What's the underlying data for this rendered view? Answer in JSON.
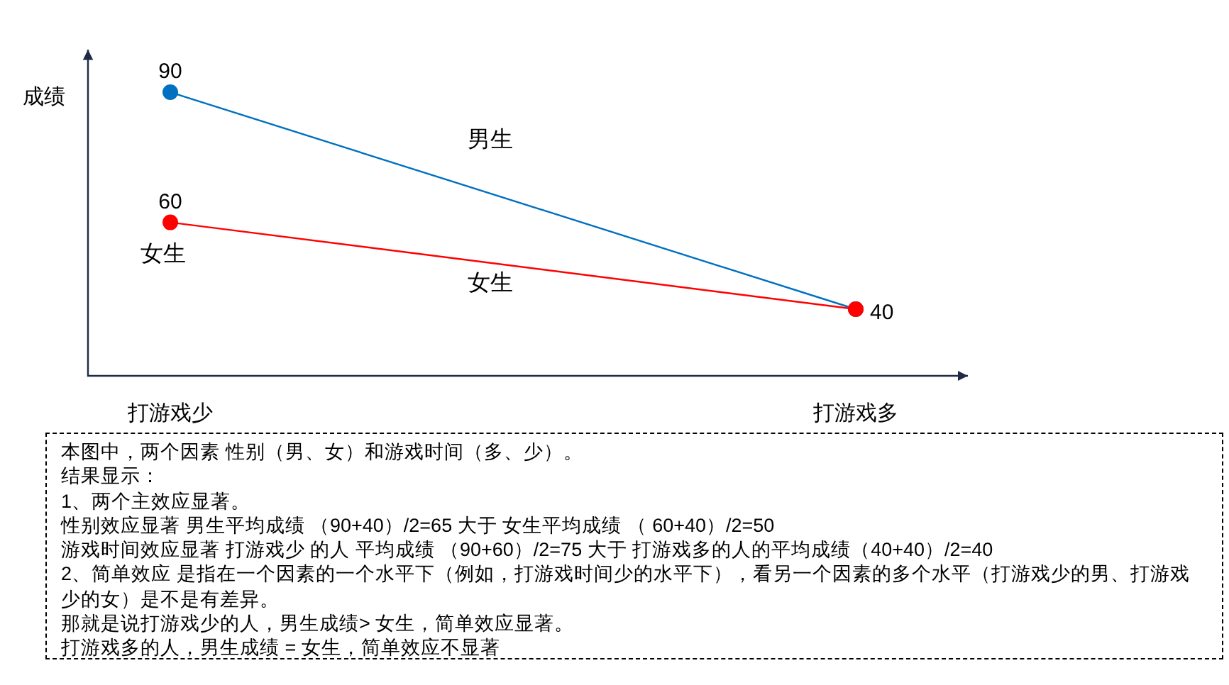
{
  "chart_data": {
    "type": "line",
    "ylabel": "成绩",
    "categories": [
      "打游戏少",
      "打游戏多"
    ],
    "series": [
      {
        "name": "男生",
        "color": "#0070c0",
        "values": [
          90,
          40
        ],
        "value_labels": [
          "90",
          "40"
        ]
      },
      {
        "name": "女生",
        "color": "#ff0000",
        "values": [
          60,
          40
        ],
        "value_labels": [
          "60",
          null
        ]
      }
    ],
    "marker": "circle",
    "line_style": "solid",
    "annotations": [
      {
        "text": "女生",
        "x": "打游戏少",
        "y": 60
      },
      "本图中，两个因素 性别（男、女）和游戏时间（多、少）。",
      "结果显示：",
      "1、两个主效应显著。",
      "性别效应显著   男生平均成绩 （90+40）/2=65  大于  女生平均成绩 （ 60+40）/2=50",
      "游戏时间效应显著   打游戏少 的人  平均成绩 （90+60）/2=75  大于 打游戏多的人的平均成绩（40+40）/2=40",
      "2、简单效应  是指在一个因素的一个水平下（例如，打游戏时间少的水平下），看另一个因素的多个水平（打游戏少的男、打游戏少的女）是不是有差异。",
      "那就是说打游戏少的人，男生成绩> 女生，简单效应显著。",
      "打游戏多的人，男生成绩 = 女生，简单效应不显著"
    ]
  }
}
